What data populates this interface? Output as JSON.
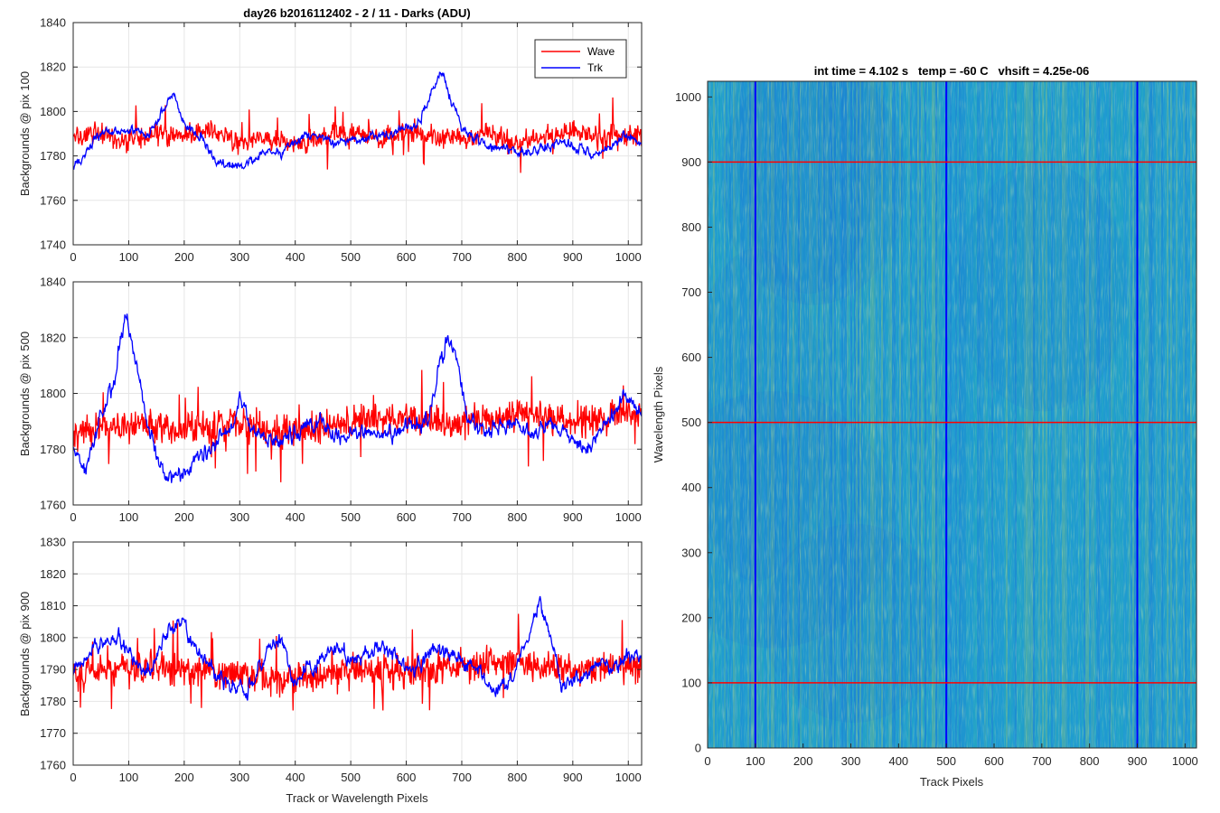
{
  "chart_data": [
    {
      "type": "line",
      "title": "day26 b2016112402 - 2 / 11 - Darks (ADU)",
      "xlabel": "",
      "ylabel": "Backgrounds @ pix 100",
      "xlim": [
        0,
        1024
      ],
      "ylim": [
        1740,
        1840
      ],
      "xticks": [
        "0",
        "100",
        "200",
        "300",
        "400",
        "500",
        "600",
        "700",
        "800",
        "900",
        "1000"
      ],
      "yticks": [
        "1740",
        "1760",
        "1780",
        "1800",
        "1820",
        "1840"
      ],
      "grid": true,
      "legend": "top-right",
      "series": [
        {
          "name": "Wave",
          "color": "#ff0000",
          "x": [
            0,
            50,
            100,
            150,
            200,
            250,
            300,
            350,
            400,
            450,
            500,
            550,
            600,
            650,
            700,
            750,
            800,
            850,
            900,
            950,
            1000,
            1024
          ],
          "values": [
            1788,
            1790,
            1787,
            1791,
            1789,
            1792,
            1786,
            1788,
            1785,
            1789,
            1790,
            1787,
            1791,
            1789,
            1788,
            1790,
            1786,
            1789,
            1791,
            1788,
            1790,
            1789
          ],
          "noise": 8
        },
        {
          "name": "Trk",
          "color": "#0000ff",
          "x": [
            0,
            25,
            50,
            90,
            130,
            150,
            170,
            180,
            200,
            230,
            260,
            290,
            320,
            350,
            380,
            410,
            440,
            470,
            500,
            530,
            560,
            590,
            620,
            645,
            665,
            680,
            700,
            730,
            760,
            790,
            820,
            850,
            880,
            910,
            940,
            970,
            1000,
            1024
          ],
          "values": [
            1776,
            1782,
            1790,
            1792,
            1789,
            1795,
            1805,
            1808,
            1795,
            1788,
            1776,
            1775,
            1778,
            1783,
            1782,
            1788,
            1789,
            1786,
            1787,
            1788,
            1790,
            1791,
            1794,
            1808,
            1818,
            1805,
            1792,
            1786,
            1784,
            1783,
            1781,
            1784,
            1786,
            1783,
            1780,
            1784,
            1790,
            1784
          ],
          "noise": 3
        }
      ]
    },
    {
      "type": "line",
      "title": "",
      "xlabel": "",
      "ylabel": "Backgrounds @ pix 500",
      "xlim": [
        0,
        1024
      ],
      "ylim": [
        1760,
        1840
      ],
      "xticks": [
        "0",
        "100",
        "200",
        "300",
        "400",
        "500",
        "600",
        "700",
        "800",
        "900",
        "1000"
      ],
      "yticks": [
        "1760",
        "1780",
        "1800",
        "1820",
        "1840"
      ],
      "grid": true,
      "series": [
        {
          "name": "Wave",
          "color": "#ff0000",
          "x": [
            0,
            100,
            200,
            300,
            400,
            500,
            600,
            700,
            800,
            900,
            1000,
            1024
          ],
          "values": [
            1786,
            1788,
            1787,
            1789,
            1786,
            1790,
            1791,
            1789,
            1792,
            1790,
            1793,
            1790
          ],
          "noise": 9
        },
        {
          "name": "Trk",
          "color": "#0000ff",
          "x": [
            0,
            20,
            50,
            70,
            85,
            95,
            110,
            130,
            150,
            170,
            200,
            230,
            260,
            290,
            300,
            320,
            350,
            380,
            410,
            440,
            470,
            490,
            510,
            530,
            560,
            600,
            640,
            660,
            675,
            690,
            710,
            740,
            780,
            800,
            830,
            860,
            900,
            930,
            960,
            990,
            1024
          ],
          "values": [
            1780,
            1772,
            1792,
            1802,
            1820,
            1828,
            1815,
            1792,
            1778,
            1770,
            1770,
            1778,
            1783,
            1790,
            1800,
            1788,
            1782,
            1784,
            1787,
            1790,
            1786,
            1784,
            1787,
            1786,
            1784,
            1788,
            1790,
            1810,
            1820,
            1815,
            1790,
            1786,
            1790,
            1788,
            1784,
            1790,
            1784,
            1780,
            1790,
            1800,
            1793
          ],
          "noise": 4
        }
      ]
    },
    {
      "type": "line",
      "title": "",
      "xlabel": "Track or Wavelength Pixels",
      "ylabel": "Backgrounds @ pix 900",
      "xlim": [
        0,
        1024
      ],
      "ylim": [
        1760,
        1830
      ],
      "xticks": [
        "0",
        "100",
        "200",
        "300",
        "400",
        "500",
        "600",
        "700",
        "800",
        "900",
        "1000"
      ],
      "yticks": [
        "1760",
        "1770",
        "1780",
        "1790",
        "1800",
        "1810",
        "1820",
        "1830"
      ],
      "grid": true,
      "series": [
        {
          "name": "Wave",
          "color": "#ff0000",
          "x": [
            0,
            100,
            200,
            300,
            400,
            500,
            600,
            700,
            800,
            900,
            1000,
            1024
          ],
          "values": [
            1789,
            1791,
            1790,
            1788,
            1787,
            1790,
            1789,
            1791,
            1792,
            1790,
            1791,
            1790
          ],
          "noise": 8
        },
        {
          "name": "Trk",
          "color": "#0000ff",
          "x": [
            0,
            40,
            80,
            110,
            140,
            170,
            200,
            220,
            250,
            280,
            310,
            340,
            370,
            400,
            430,
            460,
            490,
            520,
            550,
            580,
            610,
            640,
            670,
            700,
            730,
            760,
            790,
            820,
            840,
            860,
            880,
            910,
            940,
            970,
            1000,
            1024
          ],
          "values": [
            1790,
            1797,
            1800,
            1793,
            1790,
            1803,
            1806,
            1797,
            1790,
            1785,
            1782,
            1792,
            1800,
            1787,
            1790,
            1797,
            1795,
            1793,
            1798,
            1795,
            1788,
            1796,
            1797,
            1792,
            1790,
            1783,
            1787,
            1800,
            1812,
            1800,
            1785,
            1787,
            1792,
            1790,
            1795,
            1793
          ],
          "noise": 3.5
        }
      ]
    },
    {
      "type": "heatmap",
      "title": "int time = 4.102 s   temp = -60 C   vhsift = 4.25e-06",
      "xlabel": "Track Pixels",
      "ylabel": "Wavelength Pixels",
      "xlim": [
        0,
        1024
      ],
      "ylim": [
        0,
        1024
      ],
      "xticks": [
        "0",
        "100",
        "200",
        "300",
        "400",
        "500",
        "600",
        "700",
        "800",
        "900",
        "1000"
      ],
      "yticks": [
        "0",
        "100",
        "200",
        "300",
        "400",
        "500",
        "600",
        "700",
        "800",
        "900",
        "1000"
      ],
      "colormap": [
        "#1a6fd4",
        "#1f9bd0",
        "#29b3b0",
        "#8fc66a"
      ],
      "vertical_markers": {
        "color": "#0000ff",
        "x": [
          100,
          500,
          900
        ]
      },
      "horizontal_markers": {
        "color": "#ff0000",
        "y": [
          100,
          500,
          900
        ]
      }
    }
  ]
}
